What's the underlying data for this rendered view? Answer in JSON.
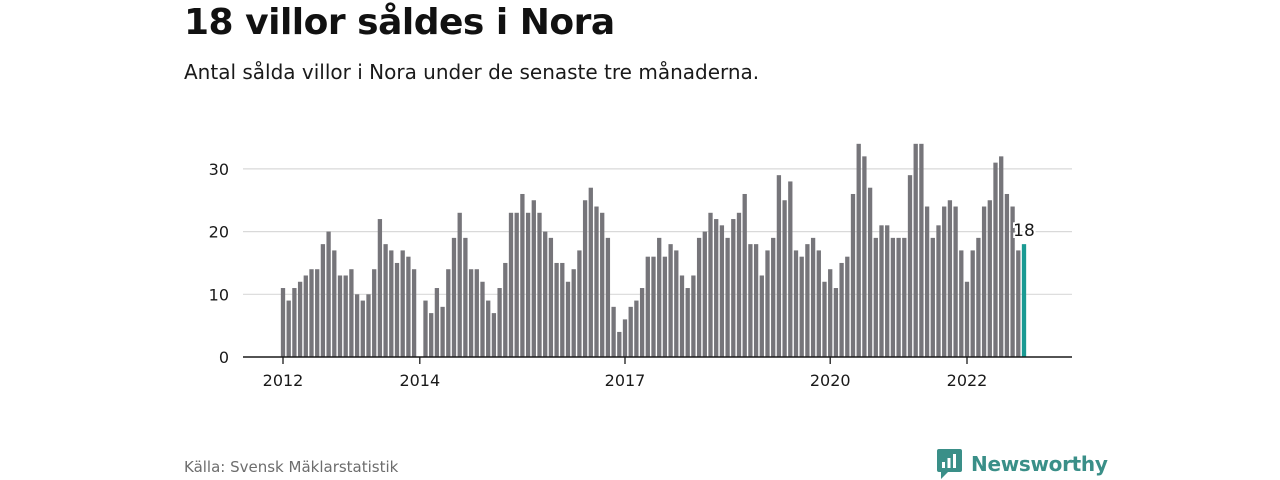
{
  "title": "18 villor såldes i Nora",
  "subtitle": "Antal sålda villor i Nora under de senaste tre månaderna.",
  "source": "Källa: Svensk Mäklarstatistik",
  "brand": {
    "name": "Newsworthy",
    "icon": "newsworthy-logo-icon"
  },
  "colors": {
    "bar": "#76757a",
    "highlight": "#1a9a93",
    "grid": "#d9d9d9",
    "axis": "#1a1a1a"
  },
  "chart_data": {
    "type": "bar",
    "ylim": [
      0,
      35
    ],
    "yticks": [
      0,
      10,
      20,
      30
    ],
    "xticks": [
      {
        "label": "2012",
        "index": 0
      },
      {
        "label": "2014",
        "index": 24
      },
      {
        "label": "2017",
        "index": 60
      },
      {
        "label": "2020",
        "index": 96
      },
      {
        "label": "2022",
        "index": 120
      }
    ],
    "values": [
      11,
      9,
      11,
      12,
      13,
      14,
      14,
      18,
      20,
      17,
      13,
      13,
      14,
      10,
      9,
      10,
      14,
      22,
      18,
      17,
      15,
      17,
      16,
      14,
      null,
      9,
      7,
      11,
      8,
      14,
      19,
      23,
      19,
      14,
      14,
      12,
      9,
      7,
      11,
      15,
      23,
      23,
      26,
      23,
      25,
      23,
      20,
      19,
      15,
      15,
      12,
      14,
      17,
      25,
      27,
      24,
      23,
      19,
      8,
      4,
      6,
      8,
      9,
      11,
      16,
      16,
      19,
      16,
      18,
      17,
      13,
      11,
      13,
      19,
      20,
      23,
      22,
      21,
      19,
      22,
      23,
      26,
      18,
      18,
      13,
      17,
      19,
      29,
      25,
      28,
      17,
      16,
      18,
      19,
      17,
      12,
      14,
      11,
      15,
      16,
      26,
      34,
      32,
      27,
      19,
      21,
      21,
      19,
      19,
      19,
      29,
      34,
      34,
      24,
      19,
      21,
      24,
      25,
      24,
      17,
      12,
      17,
      19,
      24,
      25,
      31,
      32,
      26,
      24,
      17,
      18
    ],
    "last_value_label": "18"
  }
}
